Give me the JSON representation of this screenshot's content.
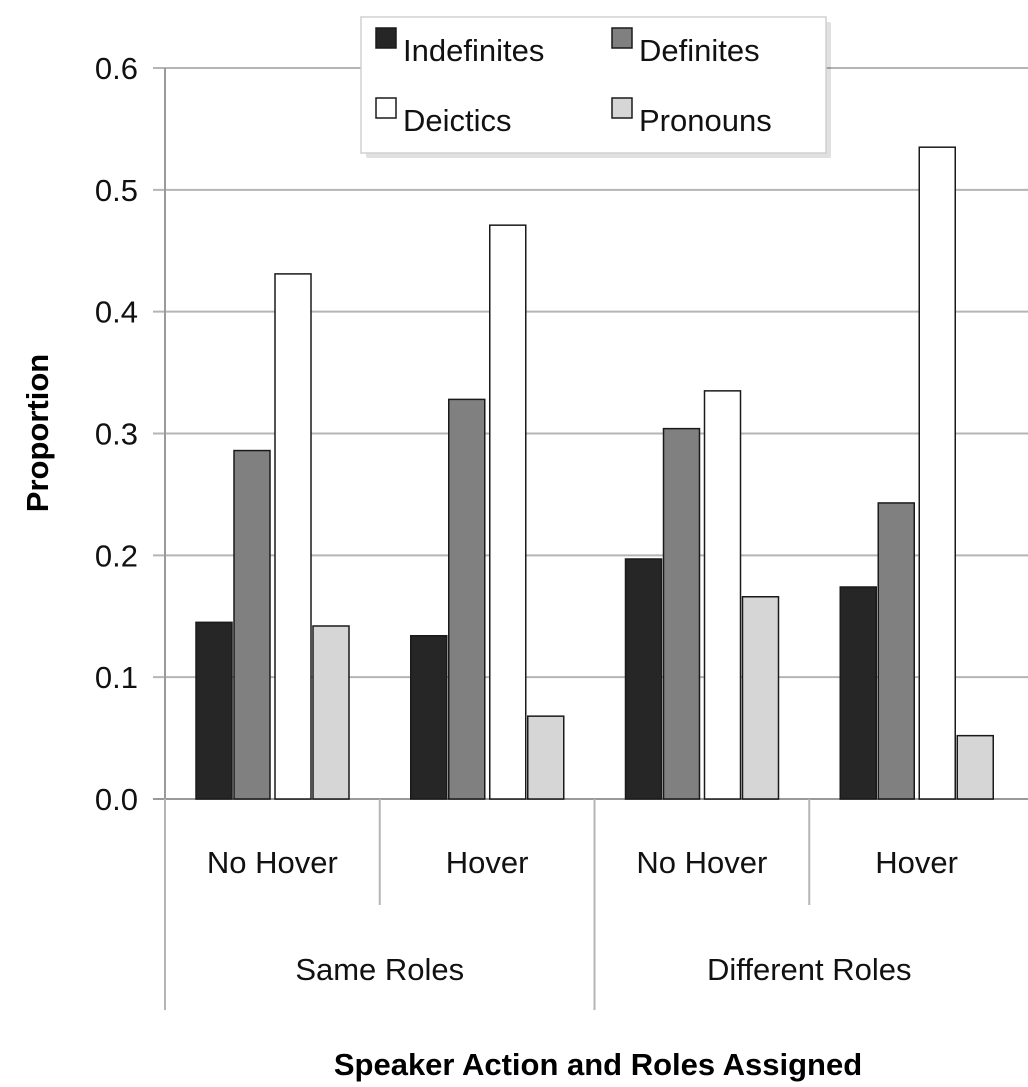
{
  "chart_data": {
    "type": "bar",
    "title": "",
    "xlabel": "Speaker Action and Roles Assigned",
    "ylabel": "Proportion",
    "ylim": [
      0,
      0.6
    ],
    "yticks": [
      "0.0",
      "0.1",
      "0.2",
      "0.3",
      "0.4",
      "0.5",
      "0.6"
    ],
    "grid": "horizontal",
    "legend_position": "top-center",
    "categories": [
      "No Hover",
      "Hover",
      "No Hover",
      "Hover"
    ],
    "groups": [
      {
        "label": "Same Roles",
        "categories": [
          "No Hover",
          "Hover"
        ]
      },
      {
        "label": "Different Roles",
        "categories": [
          "No Hover",
          "Hover"
        ]
      }
    ],
    "series": [
      {
        "name": "Indefinites",
        "color": "#262626",
        "values": [
          0.145,
          0.134,
          0.197,
          0.174
        ]
      },
      {
        "name": "Definites",
        "color": "#808080",
        "values": [
          0.286,
          0.328,
          0.304,
          0.243
        ]
      },
      {
        "name": "Deictics",
        "color": "#ffffff",
        "values": [
          0.431,
          0.471,
          0.335,
          0.535
        ]
      },
      {
        "name": "Pronouns",
        "color": "#d6d6d6",
        "values": [
          0.142,
          0.068,
          0.166,
          0.052
        ]
      }
    ]
  }
}
